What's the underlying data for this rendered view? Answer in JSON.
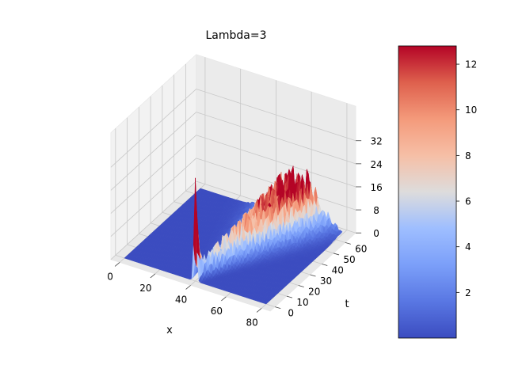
{
  "chart_data": {
    "type": "surface3d",
    "title": "Lambda=3",
    "xlabel": "x",
    "ylabel": "t",
    "zlabel": "",
    "xlim": [
      0,
      80
    ],
    "ylim": [
      0,
      65
    ],
    "zlim": [
      0,
      38
    ],
    "x_ticks": [
      0,
      20,
      40,
      60,
      80
    ],
    "t_ticks": [
      0,
      10,
      20,
      30,
      40,
      50,
      60
    ],
    "z_ticks": [
      0,
      8,
      16,
      24,
      32
    ],
    "colormap": "coolwarm",
    "colorbar": {
      "min": 0,
      "max": 12.8,
      "ticks": [
        2,
        4,
        6,
        8,
        10,
        12
      ]
    },
    "surface_features": [
      {
        "name": "initial spike",
        "x": 40,
        "t": 2,
        "peak_z": 31
      },
      {
        "name": "spreading ridge",
        "x_start": 40,
        "x_end": 72,
        "t_start": 2,
        "t_end": 62,
        "peak_z": 17
      },
      {
        "name": "flat plane",
        "z": 0
      }
    ],
    "grid": true
  }
}
